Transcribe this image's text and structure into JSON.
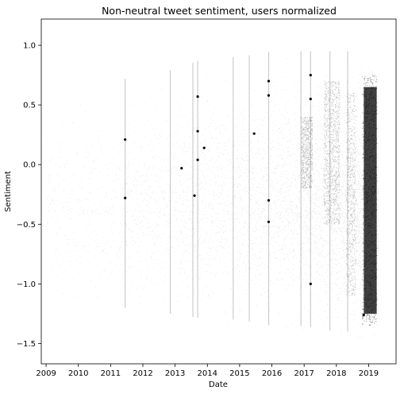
{
  "chart_data": {
    "type": "scatter",
    "title": "Non-neutral tweet sentiment, users normalized",
    "xlabel": "Date",
    "ylabel": "Sentiment",
    "xlim": [
      2008.85,
      2019.85
    ],
    "ylim": [
      -1.67,
      1.22
    ],
    "x_ticks": [
      2009,
      2010,
      2011,
      2012,
      2013,
      2014,
      2015,
      2016,
      2017,
      2018,
      2019
    ],
    "x_tick_labels": [
      "2009",
      "2010",
      "2011",
      "2012",
      "2013",
      "2014",
      "2015",
      "2016",
      "2017",
      "2018",
      "2019"
    ],
    "y_ticks": [
      -1.5,
      -1.0,
      -0.5,
      0.0,
      0.5,
      1.0
    ],
    "y_tick_labels": [
      "−1.5",
      "−1.0",
      "−0.5",
      "0.0",
      "0.5",
      "1.0"
    ],
    "grid": false,
    "legend": "none",
    "marker_color": "#000000",
    "series": [
      {
        "density_profile": [
          {
            "x": 2009.0,
            "ymin": -1.1,
            "ymax": 0.65,
            "density": 0.02
          },
          {
            "x": 2010.0,
            "ymin": -1.2,
            "ymax": 0.65,
            "density": 0.02
          },
          {
            "x": 2011.0,
            "ymin": -1.2,
            "ymax": 0.7,
            "density": 0.04
          },
          {
            "x": 2011.5,
            "ymin": -1.2,
            "ymax": 0.72,
            "density": 0.2
          },
          {
            "x": 2012.0,
            "ymin": -1.25,
            "ymax": 0.75,
            "density": 0.25
          },
          {
            "x": 2013.0,
            "ymin": -1.25,
            "ymax": 0.8,
            "density": 0.3
          },
          {
            "x": 2014.0,
            "ymin": -1.3,
            "ymax": 0.9,
            "density": 0.35
          },
          {
            "x": 2015.0,
            "ymin": -1.3,
            "ymax": 0.9,
            "density": 0.4
          },
          {
            "x": 2016.0,
            "ymin": -1.35,
            "ymax": 0.95,
            "density": 0.45
          },
          {
            "x": 2017.0,
            "ymin": -1.35,
            "ymax": 0.95,
            "density": 0.55
          },
          {
            "x": 2018.0,
            "ymin": -1.4,
            "ymax": 0.95,
            "density": 0.65
          },
          {
            "x": 2019.0,
            "ymin": -1.4,
            "ymax": 0.95,
            "density": 1.0
          }
        ],
        "dense_bands": [
          {
            "x_start": 2016.9,
            "x_end": 2017.25,
            "ymin": -0.2,
            "ymax": 0.4
          },
          {
            "x_start": 2017.6,
            "x_end": 2018.1,
            "ymin": -0.5,
            "ymax": 0.7
          },
          {
            "x_start": 2018.3,
            "x_end": 2018.6,
            "ymin": -1.1,
            "ymax": 0.6
          },
          {
            "x_start": 2018.8,
            "x_end": 2019.25,
            "ymin": -1.35,
            "ymax": 0.75
          }
        ],
        "vertical_streaks_x": [
          2011.45,
          2012.85,
          2013.55,
          2013.7,
          2014.8,
          2015.3,
          2015.9,
          2016.9,
          2017.2,
          2017.8,
          2018.35
        ],
        "marker_clusters": [
          {
            "x": 2011.45,
            "y": 0.21
          },
          {
            "x": 2011.45,
            "y": -0.28
          },
          {
            "x": 2013.2,
            "y": -0.03
          },
          {
            "x": 2013.6,
            "y": -0.26
          },
          {
            "x": 2013.7,
            "y": 0.57
          },
          {
            "x": 2013.7,
            "y": 0.28
          },
          {
            "x": 2013.7,
            "y": 0.04
          },
          {
            "x": 2013.9,
            "y": 0.14
          },
          {
            "x": 2015.45,
            "y": 0.26
          },
          {
            "x": 2015.9,
            "y": 0.7
          },
          {
            "x": 2015.9,
            "y": 0.58
          },
          {
            "x": 2015.9,
            "y": -0.3
          },
          {
            "x": 2015.9,
            "y": -0.48
          },
          {
            "x": 2017.2,
            "y": 0.75
          },
          {
            "x": 2017.2,
            "y": 0.55
          },
          {
            "x": 2017.2,
            "y": -1.0
          },
          {
            "x": 2018.85,
            "y": -1.26
          }
        ]
      }
    ]
  }
}
